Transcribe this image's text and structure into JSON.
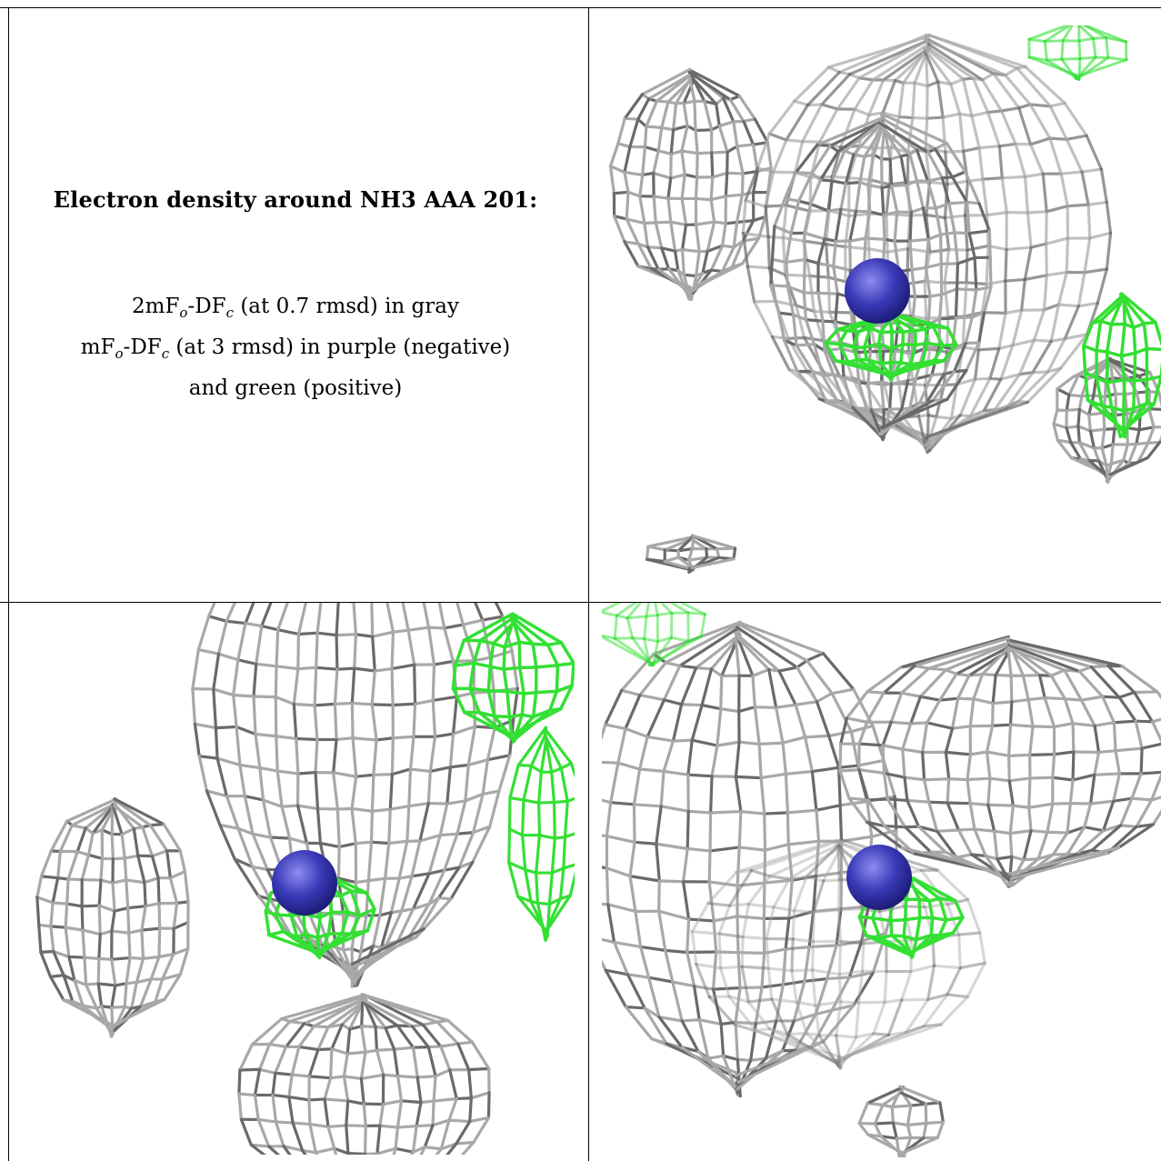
{
  "caption": {
    "title": "Electron density around NH3 AAA 201:",
    "line1_a": "2mF",
    "line1_sub1": "o",
    "line1_b": "-DF",
    "line1_sub2": "c",
    "line1_c": " (at 0.7 rmsd) in gray",
    "line2_a": "mF",
    "line2_sub1": "o",
    "line2_b": "-DF",
    "line2_sub2": "c",
    "line2_c": " (at 3 rmsd) in purple (negative)",
    "line3": "and green (positive)"
  },
  "colors": {
    "mesh_gray": "#a8a8a8",
    "mesh_dark": "#6a6a6a",
    "mesh_green": "#33e033",
    "atom_blue": "#3a3ab8"
  },
  "panels": [
    {
      "name": "view-top-right",
      "atom": "NH3 AAA 201"
    },
    {
      "name": "view-bottom-left",
      "atom": "NH3 AAA 201"
    },
    {
      "name": "view-bottom-right",
      "atom": "NH3 AAA 201"
    }
  ]
}
